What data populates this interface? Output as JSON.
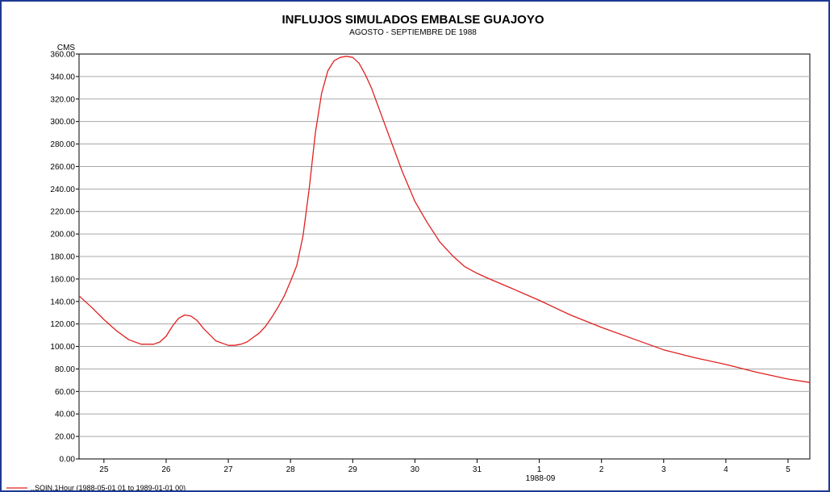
{
  "chart_data": {
    "type": "line",
    "title": "INFLUJOS SIMULADOS EMBALSE GUAJOYO",
    "subtitle": "AGOSTO - SEPTIEMBRE DE 1988",
    "ylabel": "CMS",
    "xlabel": "",
    "x_month_label": "1988-09",
    "ylim": [
      0,
      360
    ],
    "y_ticks": [
      "0.00",
      "20.00",
      "40.00",
      "60.00",
      "80.00",
      "100.00",
      "120.00",
      "140.00",
      "160.00",
      "180.00",
      "200.00",
      "220.00",
      "240.00",
      "260.00",
      "280.00",
      "300.00",
      "320.00",
      "340.00",
      "360.00"
    ],
    "y_tick_values": [
      0,
      20,
      40,
      60,
      80,
      100,
      120,
      140,
      160,
      180,
      200,
      220,
      240,
      260,
      280,
      300,
      320,
      340,
      360
    ],
    "x_ticks": [
      "25",
      "26",
      "27",
      "28",
      "29",
      "30",
      "31",
      "1",
      "2",
      "3",
      "4",
      "5"
    ],
    "x_tick_values": [
      25,
      26,
      27,
      28,
      29,
      30,
      31,
      32,
      33,
      34,
      35,
      36
    ],
    "xlim": [
      24.6,
      36.35
    ],
    "grid": "horizontal",
    "legend_position": "bottom-left",
    "series": [
      {
        "name": "..SQIN.1Hour (1988-05-01 01 to 1989-01-01 00)",
        "color": "#e02020",
        "x": [
          24.6,
          24.8,
          25.0,
          25.2,
          25.4,
          25.6,
          25.8,
          25.9,
          26.0,
          26.1,
          26.2,
          26.3,
          26.4,
          26.5,
          26.6,
          26.8,
          27.0,
          27.1,
          27.2,
          27.3,
          27.4,
          27.5,
          27.6,
          27.7,
          27.8,
          27.9,
          28.0,
          28.1,
          28.2,
          28.3,
          28.4,
          28.5,
          28.6,
          28.7,
          28.8,
          28.9,
          29.0,
          29.1,
          29.2,
          29.3,
          29.4,
          29.5,
          29.6,
          29.8,
          30.0,
          30.2,
          30.4,
          30.6,
          30.8,
          31.0,
          31.2,
          31.5,
          32.0,
          32.5,
          33.0,
          33.5,
          34.0,
          34.5,
          35.0,
          35.5,
          36.0,
          36.35
        ],
        "y": [
          145,
          135,
          124,
          114,
          106,
          102,
          102,
          104,
          109,
          118,
          125,
          128,
          127,
          123,
          116,
          105,
          101,
          101,
          102,
          104,
          108,
          112,
          118,
          126,
          135,
          145,
          158,
          172,
          198,
          240,
          290,
          325,
          345,
          354,
          357,
          358,
          357,
          352,
          342,
          330,
          315,
          300,
          285,
          255,
          229,
          210,
          193,
          181,
          171,
          165,
          160,
          153,
          141,
          128,
          117,
          107,
          97,
          90,
          84,
          77,
          71,
          68
        ]
      }
    ]
  }
}
